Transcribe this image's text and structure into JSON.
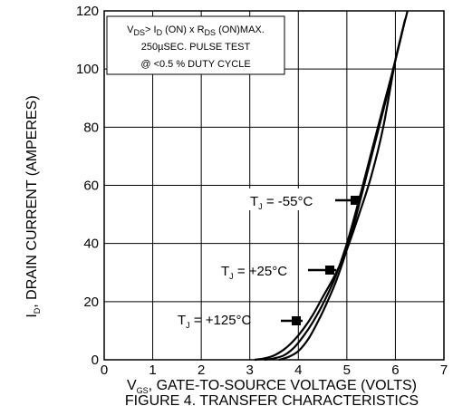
{
  "chart_data": {
    "type": "line",
    "title": "",
    "xlabel": "V",
    "xlabel_sub": "GS",
    "xlabel_rest": ", GATE-TO-SOURCE VOLTAGE (VOLTS)",
    "figure_caption": "FIGURE 4. TRANSFER CHARACTERISTICS",
    "ylabel": "I",
    "ylabel_sub": "D",
    "ylabel_rest": ", DRAIN  CURRENT (AMPERES)",
    "xlim": [
      0,
      7
    ],
    "ylim": [
      0,
      120
    ],
    "x_ticks": [
      "0",
      "1",
      "2",
      "3",
      "4",
      "5",
      "6",
      "7"
    ],
    "y_ticks": [
      "0",
      "20",
      "40",
      "60",
      "80",
      "100",
      "120"
    ],
    "grid": true,
    "test_conditions": {
      "line1": {
        "a": "V",
        "a_sub": "DS",
        "b": "> I",
        "b_sub": "D",
        "c": " (ON) x  R",
        "c_sub": "DS",
        "d": " (ON)MAX."
      },
      "line2": "250µSEC. PULSE TEST",
      "line3": "@ <0.5 % DUTY CYCLE"
    },
    "series": [
      {
        "name": "T",
        "name_sub": "J",
        "name_rest": " = -55°C",
        "x": [
          3.1,
          3.3,
          3.5,
          3.7,
          3.9,
          4.1,
          4.3,
          4.5,
          4.75,
          5.0,
          5.25,
          5.5,
          5.75,
          6.0,
          6.25
        ],
        "y": [
          0,
          0.5,
          1.5,
          3.5,
          6.5,
          10.5,
          15.5,
          21.5,
          29,
          38,
          50,
          63,
          80,
          103,
          120
        ]
      },
      {
        "name": "T",
        "name_sub": "J",
        "name_rest": " = +25°C",
        "x": [
          3.3,
          3.5,
          3.7,
          3.9,
          4.1,
          4.3,
          4.5,
          4.75,
          5.0,
          5.25,
          5.5,
          5.75,
          6.0,
          6.2
        ],
        "y": [
          0,
          0.5,
          1.5,
          4,
          8,
          13,
          19,
          28,
          40,
          55,
          71,
          87,
          103,
          117
        ]
      },
      {
        "name": "T",
        "name_sub": "J",
        "name_rest": " = +125°C",
        "x": [
          3.6,
          3.8,
          4.0,
          4.2,
          4.4,
          4.6,
          4.8,
          5.0,
          5.2,
          5.4,
          5.6,
          5.8,
          6.0,
          6.2
        ],
        "y": [
          0,
          1,
          3,
          7,
          13,
          20,
          28,
          38,
          50,
          63,
          76,
          89,
          103,
          117
        ]
      }
    ]
  }
}
